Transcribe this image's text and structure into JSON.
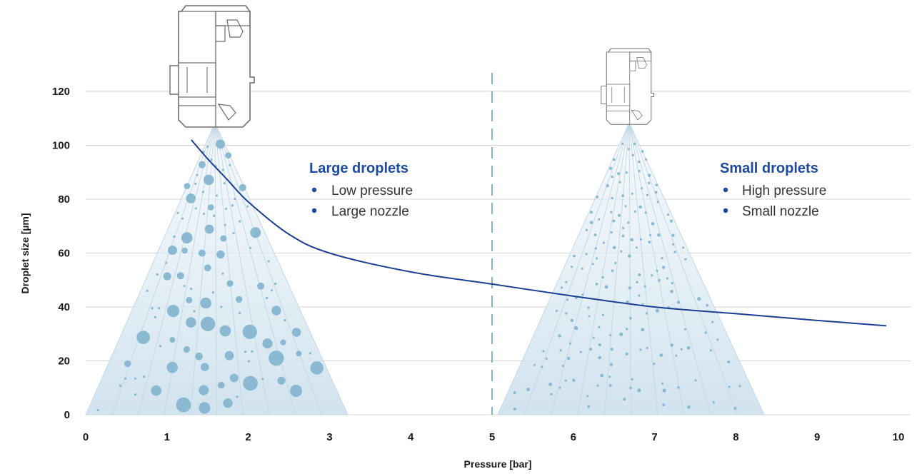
{
  "chart_data": {
    "type": "line",
    "xlabel": "Pressure [bar]",
    "ylabel": "Droplet size [µm]",
    "xlim": [
      0,
      10
    ],
    "ylim": [
      0,
      120
    ],
    "x_ticks": [
      "0",
      "1",
      "2",
      "3",
      "4",
      "5",
      "6",
      "7",
      "8",
      "9",
      "10"
    ],
    "y_ticks": [
      "0",
      "20",
      "40",
      "60",
      "80",
      "100",
      "120"
    ],
    "grid": "horizontal",
    "divider_x": 5,
    "series": [
      {
        "x": [
          1.3,
          1.5,
          1.75,
          2.0,
          2.5,
          3.0,
          4.0,
          5.0,
          6.0,
          7.0,
          8.0,
          9.0,
          9.85
        ],
        "y": [
          102,
          95,
          87,
          79,
          67,
          60,
          53,
          48.5,
          44,
          40,
          37.5,
          35,
          33
        ]
      }
    ],
    "annotations": [
      {
        "title": "Large droplets",
        "items": [
          "Low pressure",
          "Large nozzle"
        ]
      },
      {
        "title": "Small droplets",
        "items": [
          "High pressure",
          "Small nozzle"
        ]
      }
    ]
  },
  "colors": {
    "curve": "#1c3f94",
    "annotation_title": "#1c4a9e",
    "bullet": "#1c4a9e",
    "droplet": "#8ab9d1",
    "spray_fill": "#dceaf3",
    "spray_line": "#c4d9e6",
    "divider": "#5c9aa6",
    "grid": "#d4d4d4",
    "nozzle_stroke": "#6e6e6e"
  },
  "icons": {
    "large_nozzle": "spray-nozzle-icon",
    "small_nozzle": "spray-nozzle-icon"
  }
}
